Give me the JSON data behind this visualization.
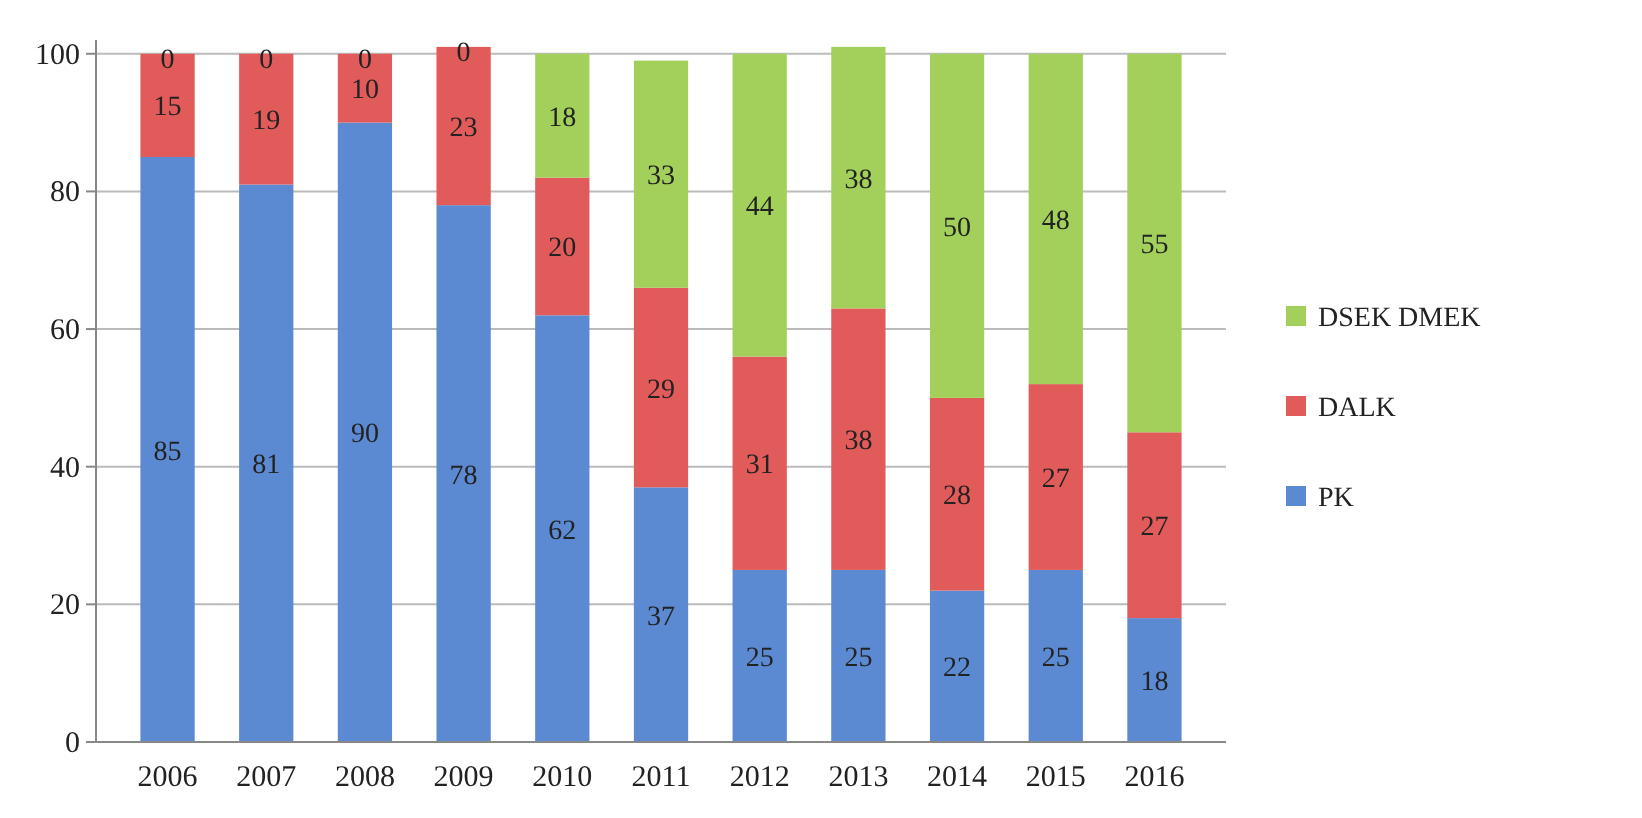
{
  "chart_data": {
    "type": "bar",
    "stacked": true,
    "categories": [
      "2006",
      "2007",
      "2008",
      "2009",
      "2010",
      "2011",
      "2012",
      "2013",
      "2014",
      "2015",
      "2016"
    ],
    "series": [
      {
        "name": "PK",
        "color": "#5b8ad2",
        "values": [
          85,
          81,
          90,
          78,
          62,
          37,
          25,
          25,
          22,
          25,
          18
        ]
      },
      {
        "name": "DALK",
        "color": "#e25b5b",
        "values": [
          15,
          19,
          10,
          23,
          20,
          29,
          31,
          38,
          28,
          27,
          27
        ]
      },
      {
        "name": "DSEK DMEK",
        "color": "#a2d05a",
        "values": [
          0,
          0,
          0,
          0,
          18,
          33,
          44,
          38,
          50,
          48,
          55
        ]
      }
    ],
    "ylim": [
      0,
      102
    ],
    "yticks": [
      0,
      20,
      40,
      60,
      80,
      100
    ],
    "grid": "y",
    "legend": "right",
    "data_labels": true
  }
}
